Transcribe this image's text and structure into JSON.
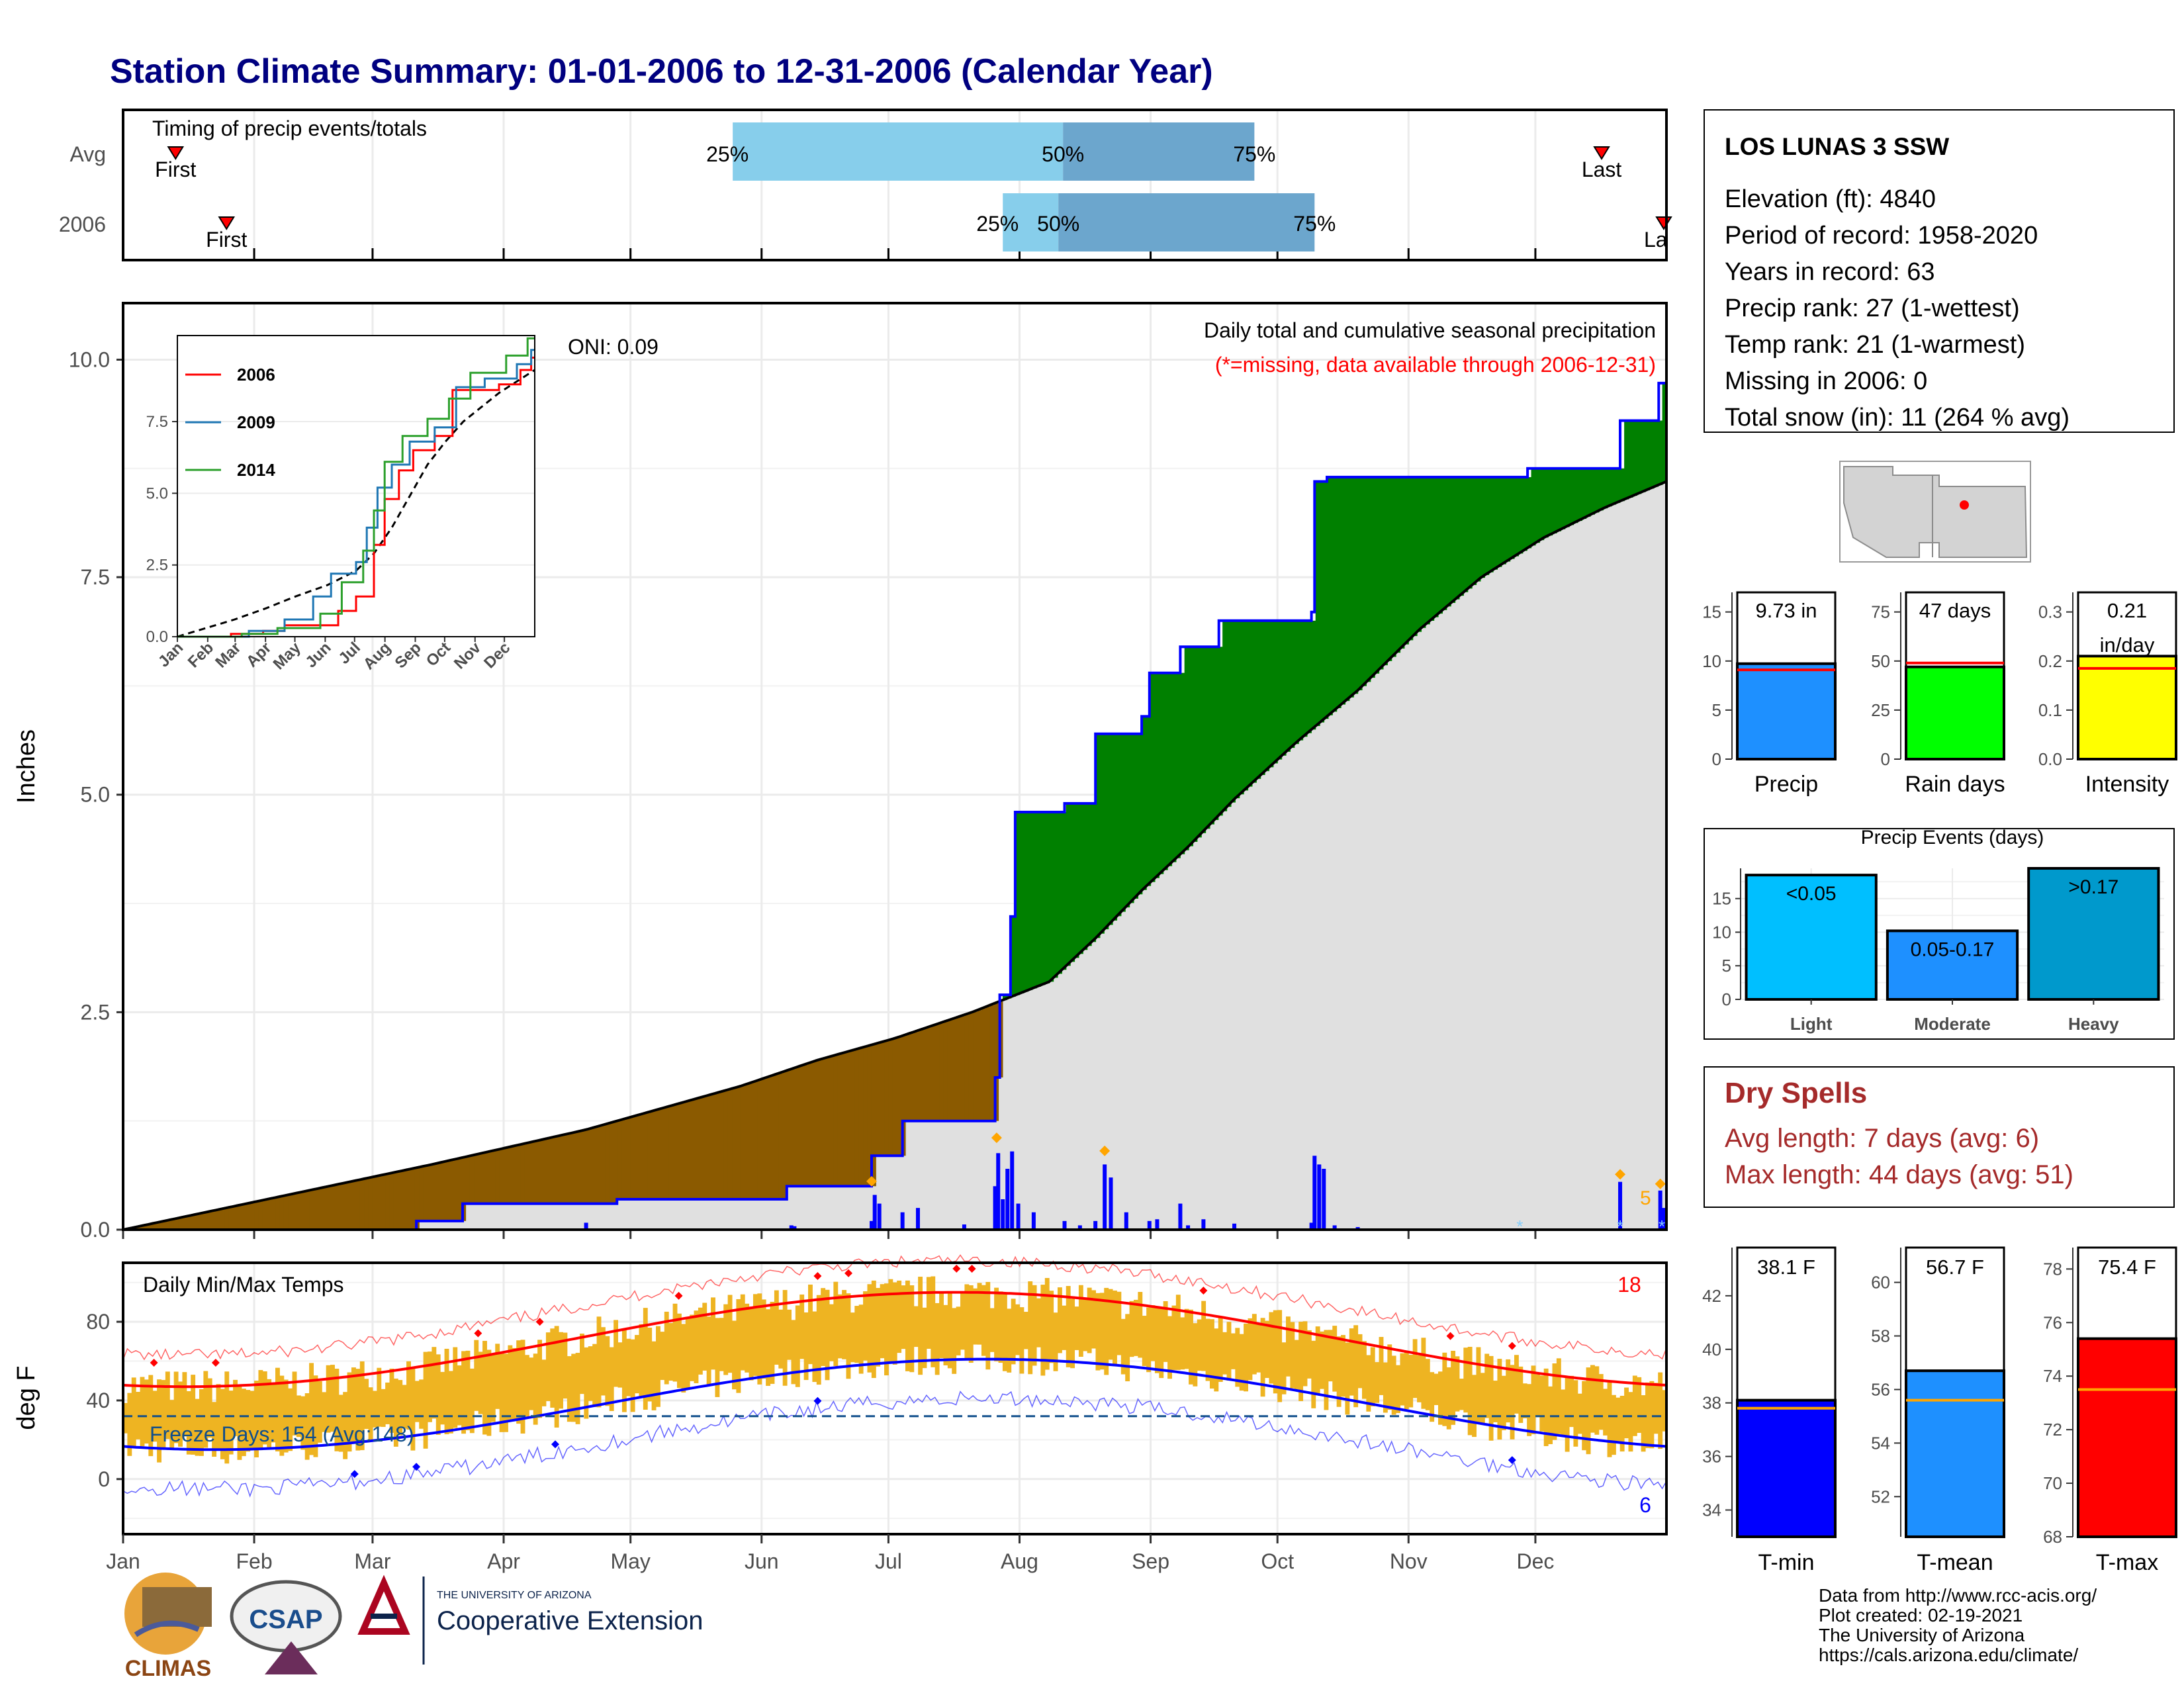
{
  "title": "Station Climate Summary: 01-01-2006 to 12-31-2006 (Calendar Year)",
  "colors": {
    "title": "#000080",
    "precip_2006": "#0000ff",
    "above_avg_fill": "#008000",
    "below_avg_fill": "#8b5a00",
    "avg_fill": "#e0e0e0",
    "tmax": "#ff0000",
    "tmin": "#0000ff",
    "temp_range": "#eeb422",
    "dry_spells": "#a52a2a",
    "oni_blue_light": "#87ceeb",
    "oni_blue_dark": "#6ca6cd"
  },
  "timing": {
    "title": "Timing of precip events/totals",
    "rows": [
      "Avg",
      "2006"
    ],
    "avg": {
      "first": 0.034,
      "p25": 0.395,
      "p50": 0.609,
      "p75": 0.733,
      "last": 0.958
    },
    "y2006": {
      "first": 0.067,
      "p25": 0.57,
      "p50": 0.606,
      "p75": 0.772,
      "last": 1.0
    },
    "labels": {
      "first": "First",
      "last": "Last",
      "last_clipped": "La",
      "p25": "25%",
      "p50": "50%",
      "p75": "75%"
    }
  },
  "month_labels": [
    "Jan",
    "Feb",
    "Mar",
    "Apr",
    "May",
    "Jun",
    "Jul",
    "Aug",
    "Sep",
    "Oct",
    "Nov",
    "Dec"
  ],
  "precip_panel": {
    "ylabel": "Inches",
    "yticks": [
      "0.0",
      "2.5",
      "5.0",
      "7.5",
      "10.0"
    ],
    "ylim": [
      0,
      10.65
    ],
    "oni": "ONI: 0.09",
    "caption": "Daily total and cumulative seasonal precipitation",
    "caption_missing": "(*=missing, data available through 2006-12-31)",
    "right_count": "5",
    "avg_cumulative": [
      [
        0,
        0
      ],
      [
        0.04,
        0.15
      ],
      [
        0.08,
        0.3
      ],
      [
        0.12,
        0.45
      ],
      [
        0.16,
        0.6
      ],
      [
        0.2,
        0.75
      ],
      [
        0.25,
        0.95
      ],
      [
        0.3,
        1.15
      ],
      [
        0.35,
        1.4
      ],
      [
        0.4,
        1.65
      ],
      [
        0.45,
        1.95
      ],
      [
        0.5,
        2.2
      ],
      [
        0.55,
        2.5
      ],
      [
        0.6,
        2.85
      ],
      [
        0.63,
        3.35
      ],
      [
        0.66,
        3.9
      ],
      [
        0.69,
        4.4
      ],
      [
        0.72,
        4.95
      ],
      [
        0.76,
        5.6
      ],
      [
        0.8,
        6.2
      ],
      [
        0.84,
        6.9
      ],
      [
        0.88,
        7.5
      ],
      [
        0.92,
        7.95
      ],
      [
        0.96,
        8.3
      ],
      [
        1.0,
        8.6
      ]
    ],
    "cum_2006": [
      [
        0,
        0
      ],
      [
        0.19,
        0
      ],
      [
        0.19,
        0.1
      ],
      [
        0.22,
        0.1
      ],
      [
        0.22,
        0.3
      ],
      [
        0.32,
        0.3
      ],
      [
        0.32,
        0.35
      ],
      [
        0.43,
        0.35
      ],
      [
        0.43,
        0.5
      ],
      [
        0.485,
        0.5
      ],
      [
        0.485,
        0.85
      ],
      [
        0.505,
        0.85
      ],
      [
        0.505,
        1.25
      ],
      [
        0.565,
        1.25
      ],
      [
        0.565,
        1.75
      ],
      [
        0.568,
        1.75
      ],
      [
        0.568,
        2.7
      ],
      [
        0.575,
        2.7
      ],
      [
        0.575,
        3.6
      ],
      [
        0.578,
        3.6
      ],
      [
        0.578,
        4.8
      ],
      [
        0.61,
        4.8
      ],
      [
        0.61,
        4.9
      ],
      [
        0.63,
        4.9
      ],
      [
        0.63,
        5.7
      ],
      [
        0.66,
        5.7
      ],
      [
        0.66,
        5.9
      ],
      [
        0.665,
        5.9
      ],
      [
        0.665,
        6.4
      ],
      [
        0.685,
        6.4
      ],
      [
        0.685,
        6.7
      ],
      [
        0.71,
        6.7
      ],
      [
        0.71,
        7.0
      ],
      [
        0.77,
        7.0
      ],
      [
        0.77,
        7.1
      ],
      [
        0.772,
        7.1
      ],
      [
        0.772,
        8.6
      ],
      [
        0.78,
        8.6
      ],
      [
        0.78,
        8.65
      ],
      [
        0.91,
        8.65
      ],
      [
        0.91,
        8.75
      ],
      [
        0.97,
        8.75
      ],
      [
        0.97,
        9.3
      ],
      [
        0.995,
        9.3
      ],
      [
        0.995,
        9.73
      ],
      [
        1.0,
        9.73
      ]
    ],
    "daily_bars": [
      [
        0.3,
        0.08
      ],
      [
        0.433,
        0.05
      ],
      [
        0.435,
        0.04
      ],
      [
        0.485,
        0.1
      ],
      [
        0.487,
        0.4
      ],
      [
        0.49,
        0.3
      ],
      [
        0.505,
        0.2
      ],
      [
        0.515,
        0.25
      ],
      [
        0.545,
        0.06
      ],
      [
        0.565,
        0.5
      ],
      [
        0.567,
        0.88
      ],
      [
        0.57,
        0.35
      ],
      [
        0.573,
        0.7
      ],
      [
        0.576,
        0.9
      ],
      [
        0.58,
        0.3
      ],
      [
        0.59,
        0.2
      ],
      [
        0.61,
        0.1
      ],
      [
        0.62,
        0.05
      ],
      [
        0.63,
        0.1
      ],
      [
        0.636,
        0.75
      ],
      [
        0.64,
        0.6
      ],
      [
        0.65,
        0.2
      ],
      [
        0.665,
        0.1
      ],
      [
        0.67,
        0.12
      ],
      [
        0.69,
        0.05
      ],
      [
        0.685,
        0.3
      ],
      [
        0.7,
        0.12
      ],
      [
        0.72,
        0.07
      ],
      [
        0.77,
        0.08
      ],
      [
        0.772,
        0.85
      ],
      [
        0.775,
        0.75
      ],
      [
        0.778,
        0.7
      ],
      [
        0.785,
        0.05
      ],
      [
        0.8,
        0.03
      ],
      [
        0.97,
        0.55
      ],
      [
        0.996,
        0.45
      ],
      [
        0.998,
        0.25
      ]
    ],
    "max_markers": [
      [
        0.485,
        0.45
      ],
      [
        0.566,
        0.95
      ],
      [
        0.636,
        0.8
      ],
      [
        0.97,
        0.53
      ],
      [
        0.996,
        0.42
      ]
    ],
    "missing_markers": [
      0.905,
      0.97,
      0.997
    ]
  },
  "inset": {
    "yticks": [
      "0.0",
      "2.5",
      "5.0",
      "7.5"
    ],
    "ylim": [
      0,
      10.5
    ],
    "months": [
      "Jan",
      "Feb",
      "Mar",
      "Apr",
      "May",
      "Jun",
      "Jul",
      "Aug",
      "Sep",
      "Oct",
      "Nov",
      "Dec"
    ],
    "series": [
      {
        "name": "2006",
        "color": "#ff0000",
        "points": [
          [
            0,
            0
          ],
          [
            0.15,
            0
          ],
          [
            0.15,
            0.1
          ],
          [
            0.24,
            0.1
          ],
          [
            0.24,
            0.2
          ],
          [
            0.3,
            0.2
          ],
          [
            0.3,
            0.4
          ],
          [
            0.45,
            0.4
          ],
          [
            0.45,
            0.9
          ],
          [
            0.5,
            0.9
          ],
          [
            0.5,
            1.4
          ],
          [
            0.55,
            1.4
          ],
          [
            0.55,
            3.2
          ],
          [
            0.58,
            3.2
          ],
          [
            0.58,
            4.8
          ],
          [
            0.62,
            4.8
          ],
          [
            0.62,
            5.8
          ],
          [
            0.66,
            5.8
          ],
          [
            0.66,
            6.5
          ],
          [
            0.72,
            6.5
          ],
          [
            0.72,
            7.0
          ],
          [
            0.77,
            7.0
          ],
          [
            0.77,
            8.6
          ],
          [
            0.9,
            8.6
          ],
          [
            0.9,
            8.8
          ],
          [
            0.96,
            8.8
          ],
          [
            0.96,
            9.3
          ],
          [
            0.99,
            9.3
          ],
          [
            0.99,
            9.73
          ],
          [
            1,
            9.73
          ]
        ]
      },
      {
        "name": "2009",
        "color": "#1f77b4",
        "points": [
          [
            0,
            0
          ],
          [
            0.2,
            0
          ],
          [
            0.2,
            0.2
          ],
          [
            0.3,
            0.2
          ],
          [
            0.3,
            0.6
          ],
          [
            0.38,
            0.6
          ],
          [
            0.38,
            1.4
          ],
          [
            0.43,
            1.4
          ],
          [
            0.43,
            2.2
          ],
          [
            0.5,
            2.2
          ],
          [
            0.5,
            2.6
          ],
          [
            0.53,
            2.6
          ],
          [
            0.53,
            3.8
          ],
          [
            0.56,
            3.8
          ],
          [
            0.56,
            5.2
          ],
          [
            0.6,
            5.2
          ],
          [
            0.6,
            6.0
          ],
          [
            0.65,
            6.0
          ],
          [
            0.65,
            6.8
          ],
          [
            0.72,
            6.8
          ],
          [
            0.72,
            7.3
          ],
          [
            0.78,
            7.3
          ],
          [
            0.78,
            8.7
          ],
          [
            0.86,
            8.7
          ],
          [
            0.86,
            9.0
          ],
          [
            0.95,
            9.0
          ],
          [
            0.95,
            9.5
          ],
          [
            0.99,
            9.5
          ],
          [
            0.99,
            10.0
          ],
          [
            1,
            10.0
          ]
        ]
      },
      {
        "name": "2014",
        "color": "#2ca02c",
        "points": [
          [
            0,
            0
          ],
          [
            0.18,
            0
          ],
          [
            0.18,
            0.1
          ],
          [
            0.28,
            0.1
          ],
          [
            0.28,
            0.3
          ],
          [
            0.4,
            0.3
          ],
          [
            0.4,
            0.8
          ],
          [
            0.46,
            0.8
          ],
          [
            0.46,
            1.9
          ],
          [
            0.52,
            1.9
          ],
          [
            0.52,
            3.0
          ],
          [
            0.55,
            3.0
          ],
          [
            0.55,
            4.4
          ],
          [
            0.58,
            4.4
          ],
          [
            0.58,
            6.1
          ],
          [
            0.63,
            6.1
          ],
          [
            0.63,
            7.0
          ],
          [
            0.7,
            7.0
          ],
          [
            0.7,
            7.6
          ],
          [
            0.76,
            7.6
          ],
          [
            0.76,
            8.3
          ],
          [
            0.82,
            8.3
          ],
          [
            0.82,
            9.2
          ],
          [
            0.92,
            9.2
          ],
          [
            0.92,
            9.8
          ],
          [
            0.98,
            9.8
          ],
          [
            0.98,
            10.4
          ],
          [
            1,
            10.4
          ]
        ]
      }
    ],
    "avg": [
      [
        0,
        0
      ],
      [
        0.08,
        0.3
      ],
      [
        0.16,
        0.6
      ],
      [
        0.25,
        1.0
      ],
      [
        0.33,
        1.4
      ],
      [
        0.42,
        1.8
      ],
      [
        0.5,
        2.3
      ],
      [
        0.55,
        2.9
      ],
      [
        0.6,
        3.8
      ],
      [
        0.65,
        4.9
      ],
      [
        0.7,
        6.0
      ],
      [
        0.75,
        6.8
      ],
      [
        0.8,
        7.5
      ],
      [
        0.85,
        8.0
      ],
      [
        0.9,
        8.5
      ],
      [
        0.95,
        8.9
      ],
      [
        1,
        9.3
      ]
    ]
  },
  "temp_panel": {
    "title": "Daily Min/Max Temps",
    "ylabel": "deg F",
    "yticks": [
      "0",
      "40",
      "80"
    ],
    "ylim": [
      -28,
      110
    ],
    "freeze_days": "Freeze Days: 154 (Avg:148)",
    "freeze_line": 32,
    "max_count": "18",
    "min_count": "6"
  },
  "station": {
    "name": "LOS LUNAS 3 SSW",
    "lines": [
      "Elevation (ft): 4840",
      "Period of record: 1958-2020",
      "Years in record: 63",
      "Precip rank: 27 (1-wettest)",
      "Temp rank: 21 (1-warmest)",
      "Missing in 2006: 0",
      "Total snow (in): 11 (264 % avg)"
    ]
  },
  "summary_bars": [
    {
      "label": "Precip",
      "value": 9.73,
      "avg": 9.1,
      "ylim": [
        0,
        17
      ],
      "ticks": [
        "0",
        "5",
        "10",
        "15"
      ],
      "tickvals": [
        0,
        5,
        10,
        15
      ],
      "text": "9.73 in",
      "text2": "",
      "color": "#1e90ff"
    },
    {
      "label": "Rain days",
      "value": 47,
      "avg": 49,
      "ylim": [
        0,
        85
      ],
      "ticks": [
        "0",
        "25",
        "50",
        "75"
      ],
      "tickvals": [
        0,
        25,
        50,
        75
      ],
      "text": "47 days",
      "text2": "",
      "color": "#00ff00"
    },
    {
      "label": "Intensity",
      "value": 0.21,
      "avg": 0.185,
      "ylim": [
        0,
        0.34
      ],
      "ticks": [
        "0.0",
        "0.1",
        "0.2",
        "0.3"
      ],
      "tickvals": [
        0,
        0.1,
        0.2,
        0.3
      ],
      "text": "0.21",
      "text2": "in/day",
      "color": "#ffff00"
    }
  ],
  "precip_events": {
    "title": "Precip Events (days)",
    "ticks": [
      "0",
      "5",
      "10",
      "15"
    ],
    "ylim": [
      0,
      19.5
    ],
    "categories": [
      "Light",
      "Moderate",
      "Heavy"
    ],
    "values": [
      18.5,
      10.2,
      19.5
    ],
    "bar_labels": [
      "<0.05",
      "0.05-0.17",
      ">0.17"
    ],
    "colors": [
      "#00bfff",
      "#1e90ff",
      "#0099cc"
    ]
  },
  "dry_spells": {
    "title": "Dry Spells",
    "avg_length": "Avg length: 7 days (avg: 6)",
    "max_length": "Max length: 44 days (avg: 51)"
  },
  "temp_bars": [
    {
      "label": "T-min",
      "value": 38.1,
      "avg": 37.8,
      "ylim": [
        33,
        43.8
      ],
      "ticks": [
        "34",
        "36",
        "38",
        "40",
        "42"
      ],
      "tickvals": [
        34,
        36,
        38,
        40,
        42
      ],
      "text": "38.1 F",
      "color": "#0000ff"
    },
    {
      "label": "T-mean",
      "value": 56.7,
      "avg": 55.6,
      "ylim": [
        50.5,
        61.3
      ],
      "ticks": [
        "52",
        "54",
        "56",
        "58",
        "60"
      ],
      "tickvals": [
        52,
        54,
        56,
        58,
        60
      ],
      "text": "56.7 F",
      "color": "#1e90ff"
    },
    {
      "label": "T-max",
      "value": 75.4,
      "avg": 73.5,
      "ylim": [
        68,
        78.8
      ],
      "ticks": [
        "68",
        "70",
        "72",
        "74",
        "76",
        "78"
      ],
      "tickvals": [
        68,
        70,
        72,
        74,
        76,
        78
      ],
      "text": "75.4 F",
      "color": "#ff0000"
    }
  ],
  "footer": {
    "climas": "CLIMAS",
    "csap": "CSAP",
    "ua_small": "THE UNIVERSITY OF ARIZONA",
    "ua_big": "Cooperative Extension",
    "credits": [
      "Data from http://www.rcc-acis.org/",
      "Plot created: 02-19-2021",
      "The University of Arizona",
      "https://cals.arizona.edu/climate/"
    ]
  }
}
